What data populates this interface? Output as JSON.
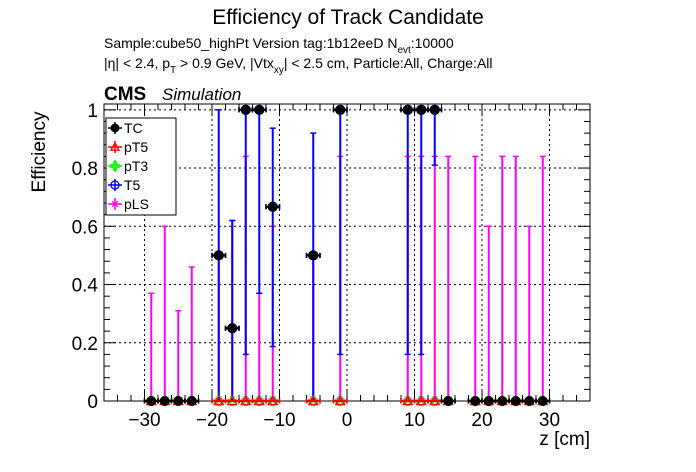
{
  "chart_data": {
    "type": "scatter",
    "title": "Efficiency of Track Candidate",
    "subtitle_line1_prefix": "Sample:cube50_highPt   Version tag:1b12eeD  N",
    "subtitle_line1_sub": "evt",
    "subtitle_line1_suffix": ":10000",
    "subtitle_line2_a": "|η| < 2.4, p",
    "subtitle_line2_sub1": "T",
    "subtitle_line2_b": " > 0.9 GeV, |Vtx",
    "subtitle_line2_sub2": "xy",
    "subtitle_line2_c": "| < 2.5 cm, Particle:All, Charge:All",
    "cms_label": "CMS",
    "simulation_label": "Simulation",
    "xlabel": "z [cm]",
    "ylabel": "Efficiency",
    "xlim": [
      -36,
      36
    ],
    "ylim": [
      0,
      1.02
    ],
    "x_ticks": [
      -30,
      -20,
      -10,
      0,
      10,
      20,
      30
    ],
    "x_tick_labels": [
      "−30",
      "−20",
      "−10",
      "0",
      "10",
      "20",
      "30"
    ],
    "y_ticks": [
      0,
      0.2,
      0.4,
      0.6,
      0.8,
      1
    ],
    "y_tick_labels": [
      "0",
      "0.2",
      "0.4",
      "0.6",
      "0.8",
      "1"
    ],
    "grid": true,
    "legend_position": "top-left",
    "legend": [
      {
        "label": "TC",
        "color": "#000000",
        "marker": "filled-circle"
      },
      {
        "label": "pT5",
        "color": "#ff0000",
        "marker": "open-triangle"
      },
      {
        "label": "pT3",
        "color": "#00ff00",
        "marker": "open-cross"
      },
      {
        "label": "T5",
        "color": "#0000ff",
        "marker": "open-circle"
      },
      {
        "label": "pLS",
        "color": "#ff00ff",
        "marker": "open-star"
      }
    ],
    "bin_half_width": 1,
    "series": [
      {
        "name": "TC",
        "color": "#000000",
        "points": [
          {
            "x": -29,
            "y": 0
          },
          {
            "x": -27,
            "y": 0
          },
          {
            "x": -25,
            "y": 0
          },
          {
            "x": -23,
            "y": 0
          },
          {
            "x": -19,
            "y": 0.5
          },
          {
            "x": -17,
            "y": 0.25
          },
          {
            "x": -15,
            "y": 1
          },
          {
            "x": -13,
            "y": 1
          },
          {
            "x": -11,
            "y": 0.667
          },
          {
            "x": -5,
            "y": 0.5
          },
          {
            "x": -1,
            "y": 1
          },
          {
            "x": 9,
            "y": 1
          },
          {
            "x": 11,
            "y": 1
          },
          {
            "x": 13,
            "y": 1
          },
          {
            "x": 15,
            "y": 0
          },
          {
            "x": 19,
            "y": 0
          },
          {
            "x": 21,
            "y": 0
          },
          {
            "x": 23,
            "y": 0
          },
          {
            "x": 25,
            "y": 0
          },
          {
            "x": 27,
            "y": 0
          },
          {
            "x": 29,
            "y": 0
          }
        ]
      },
      {
        "name": "pT5",
        "color": "#ff0000",
        "points": [
          {
            "x": -29,
            "y": 0
          },
          {
            "x": -27,
            "y": 0
          },
          {
            "x": -25,
            "y": 0
          },
          {
            "x": -23,
            "y": 0
          },
          {
            "x": -19,
            "y": 0
          },
          {
            "x": -17,
            "y": 0
          },
          {
            "x": -15,
            "y": 0
          },
          {
            "x": -13,
            "y": 0
          },
          {
            "x": -11,
            "y": 0
          },
          {
            "x": -5,
            "y": 0
          },
          {
            "x": -1,
            "y": 0
          },
          {
            "x": 9,
            "y": 0
          },
          {
            "x": 11,
            "y": 0
          },
          {
            "x": 13,
            "y": 0
          },
          {
            "x": 15,
            "y": 0
          },
          {
            "x": 19,
            "y": 0
          },
          {
            "x": 21,
            "y": 0
          },
          {
            "x": 23,
            "y": 0
          },
          {
            "x": 25,
            "y": 0
          },
          {
            "x": 27,
            "y": 0
          },
          {
            "x": 29,
            "y": 0
          }
        ]
      },
      {
        "name": "pT3",
        "color": "#00ff00",
        "points": [
          {
            "x": -29,
            "y": 0
          },
          {
            "x": -27,
            "y": 0
          },
          {
            "x": -25,
            "y": 0
          },
          {
            "x": -23,
            "y": 0
          },
          {
            "x": -19,
            "y": 0
          },
          {
            "x": -17,
            "y": 0
          },
          {
            "x": -15,
            "y": 0
          },
          {
            "x": -13,
            "y": 0
          },
          {
            "x": -11,
            "y": 0
          },
          {
            "x": -5,
            "y": 0
          },
          {
            "x": -1,
            "y": 0
          },
          {
            "x": 9,
            "y": 0
          },
          {
            "x": 11,
            "y": 0
          },
          {
            "x": 13,
            "y": 0
          },
          {
            "x": 15,
            "y": 0
          },
          {
            "x": 19,
            "y": 0
          },
          {
            "x": 21,
            "y": 0
          },
          {
            "x": 23,
            "y": 0
          },
          {
            "x": 25,
            "y": 0
          },
          {
            "x": 27,
            "y": 0
          },
          {
            "x": 29,
            "y": 0
          }
        ]
      },
      {
        "name": "T5",
        "color": "#0000ff",
        "points": [
          {
            "x": -19,
            "y": 0.5,
            "err_low": 0.5,
            "err_high": 0.5
          },
          {
            "x": -17,
            "y": 0.25,
            "err_low": 0.25,
            "err_high": 0.37
          },
          {
            "x": -15,
            "y": 1,
            "err_low": 0.84,
            "err_high": 0
          },
          {
            "x": -13,
            "y": 1,
            "err_low": 0.63,
            "err_high": 0
          },
          {
            "x": -11,
            "y": 0.667,
            "err_low": 0.48,
            "err_high": 0.27
          },
          {
            "x": -5,
            "y": 0.5,
            "err_low": 0.5,
            "err_high": 0.42
          },
          {
            "x": -1,
            "y": 1,
            "err_low": 0.84,
            "err_high": 0
          },
          {
            "x": 9,
            "y": 1,
            "err_low": 0.84,
            "err_high": 0
          },
          {
            "x": 11,
            "y": 1,
            "err_low": 0.84,
            "err_high": 0
          },
          {
            "x": 13,
            "y": 1,
            "err_low": 0.19,
            "err_high": 0
          }
        ]
      },
      {
        "name": "pLS",
        "color": "#ff00ff",
        "points": [
          {
            "x": -29,
            "y": 0,
            "err_low": 0,
            "err_high": 0.37
          },
          {
            "x": -27,
            "y": 0,
            "err_low": 0,
            "err_high": 0.6
          },
          {
            "x": -25,
            "y": 0,
            "err_low": 0,
            "err_high": 0.31
          },
          {
            "x": -23,
            "y": 0,
            "err_low": 0,
            "err_high": 0.46
          },
          {
            "x": -19,
            "y": 0,
            "err_low": 0,
            "err_high": 0.5
          },
          {
            "x": -17,
            "y": 0.25,
            "err_low": 0.25,
            "err_high": 0.37
          },
          {
            "x": -15,
            "y": 0,
            "err_low": 0,
            "err_high": 0.84
          },
          {
            "x": -13,
            "y": 0,
            "err_low": 0,
            "err_high": 0.37
          },
          {
            "x": -11,
            "y": 0,
            "err_low": 0,
            "err_high": 0.6
          },
          {
            "x": -5,
            "y": 0,
            "err_low": 0,
            "err_high": 0.5
          },
          {
            "x": -1,
            "y": 0,
            "err_low": 0,
            "err_high": 0.84
          },
          {
            "x": 9,
            "y": 0,
            "err_low": 0,
            "err_high": 0.84
          },
          {
            "x": 11,
            "y": 0,
            "err_low": 0,
            "err_high": 0.84
          },
          {
            "x": 13,
            "y": 0,
            "err_low": 0,
            "err_high": 0.84
          },
          {
            "x": 15,
            "y": 0,
            "err_low": 0,
            "err_high": 0.84
          },
          {
            "x": 19,
            "y": 0,
            "err_low": 0,
            "err_high": 0.84
          },
          {
            "x": 21,
            "y": 0,
            "err_low": 0,
            "err_high": 0.6
          },
          {
            "x": 23,
            "y": 0,
            "err_low": 0,
            "err_high": 0.84
          },
          {
            "x": 25,
            "y": 0,
            "err_low": 0,
            "err_high": 0.84
          },
          {
            "x": 27,
            "y": 0,
            "err_low": 0,
            "err_high": 0.6
          },
          {
            "x": 29,
            "y": 0,
            "err_low": 0,
            "err_high": 0.84
          }
        ]
      }
    ]
  }
}
